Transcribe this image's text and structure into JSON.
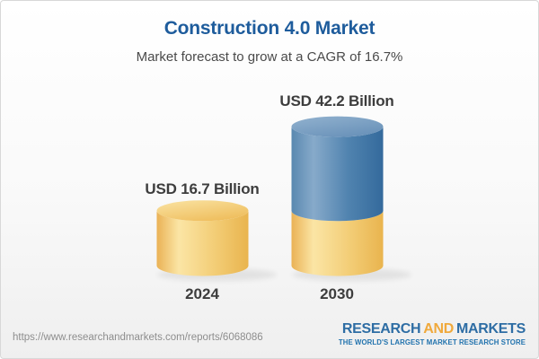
{
  "header": {
    "title": "Construction 4.0 Market",
    "subtitle": "Market forecast to grow at a CAGR of 16.7%"
  },
  "chart_data": {
    "type": "bar",
    "variant": "3d-cylinder",
    "title": "Construction 4.0 Market",
    "subtitle": "Market forecast to grow at a CAGR of 16.7%",
    "unit": "USD Billion",
    "cagr_percent": 16.7,
    "categories": [
      "2024",
      "2030"
    ],
    "values": [
      16.7,
      42.2
    ],
    "bars": [
      {
        "category": "2024",
        "value": 16.7,
        "label": "USD 16.7 Billion",
        "segments": [
          {
            "value": 16.7,
            "colorKey": "gold"
          }
        ]
      },
      {
        "category": "2030",
        "value": 42.2,
        "label": "USD 42.2 Billion",
        "segments": [
          {
            "value": 16.7,
            "colorKey": "gold"
          },
          {
            "value": 25.5,
            "colorKey": "blue"
          }
        ]
      }
    ],
    "axes": {
      "visible": false
    },
    "grid": false,
    "legend_position": "none"
  },
  "footer": {
    "url": "https://www.researchandmarkets.com/reports/6068086",
    "logo": {
      "research": "RESEARCH",
      "and": "AND",
      "markets": "MARKETS",
      "tagline": "THE WORLD'S LARGEST MARKET RESEARCH STORE"
    }
  },
  "colors": {
    "title_blue": "#1E5C9C",
    "subtitle_gray": "#4A4A4A",
    "label_dark": "#3D3D3D",
    "url_gray": "#8D8D8D",
    "logo_blue": "#2E6DA4",
    "logo_gold": "#F0A93B",
    "logo_tagline_blue": "#2273AE",
    "gold_body": [
      "#EAB255",
      "#FBE5A5",
      "#F3CE78",
      "#E9B44E"
    ],
    "gold_top": [
      "#FAE3A3",
      "#EFBF5F"
    ],
    "blue_body": [
      "#5988B0",
      "#87AACA",
      "#5083AF",
      "#346A9C"
    ],
    "blue_top": [
      "#92B2CF",
      "#6B93BA"
    ]
  }
}
